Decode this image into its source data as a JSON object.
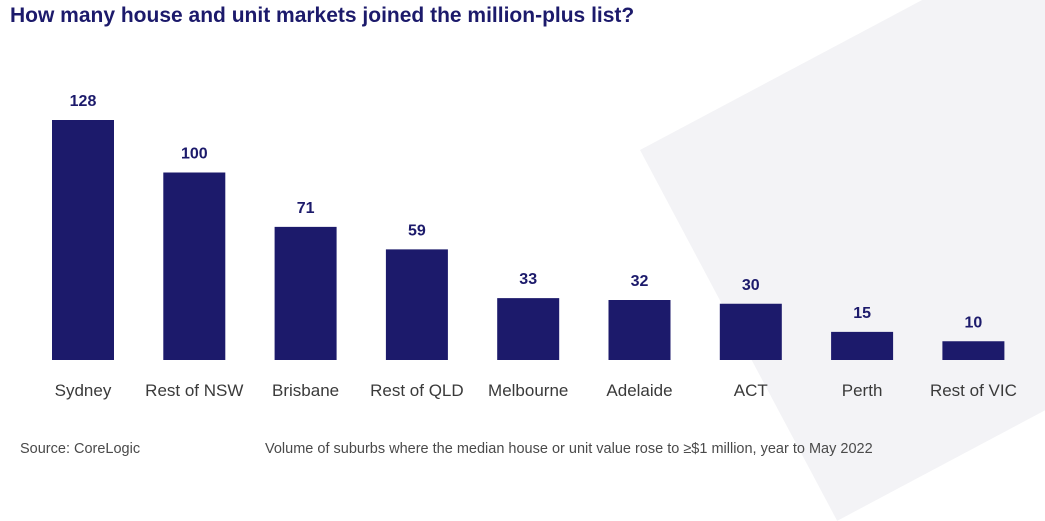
{
  "colors": {
    "bar": "#1c1a6b",
    "title": "#1c1a6b",
    "text": "#3a3a3a"
  },
  "chart_data": {
    "type": "bar",
    "title": "How many house and unit markets joined the million-plus list?",
    "categories": [
      "Sydney",
      "Rest of NSW",
      "Brisbane",
      "Rest of QLD",
      "Melbourne",
      "Adelaide",
      "ACT",
      "Perth",
      "Rest of VIC"
    ],
    "values": [
      128,
      100,
      71,
      59,
      33,
      32,
      30,
      15,
      10
    ],
    "xlabel": "",
    "ylabel": "",
    "ylim": [
      0,
      128
    ],
    "grid": false,
    "legend": "none"
  },
  "footer": {
    "source": "Source: CoreLogic",
    "note": "Volume of suburbs where the median house or unit value rose to ≥$1 million, year to May 2022"
  }
}
